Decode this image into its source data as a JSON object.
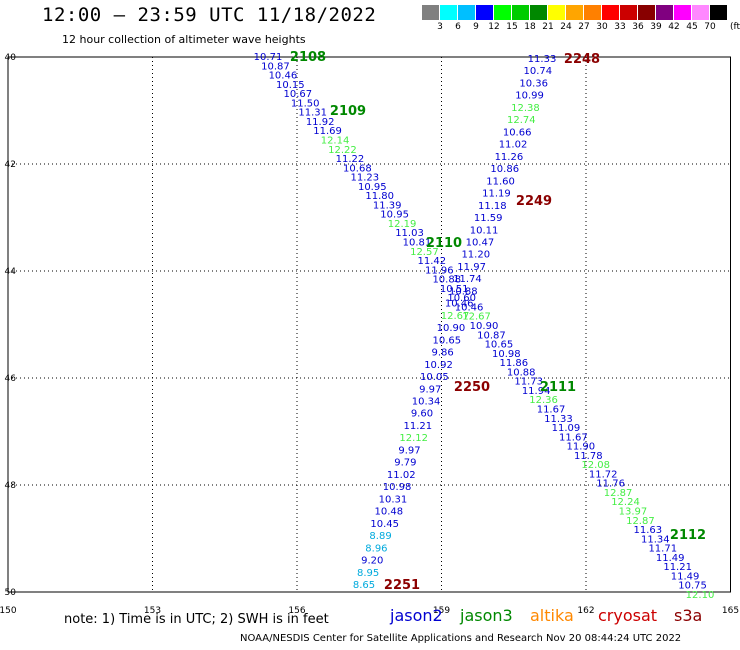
{
  "header": {
    "title": "12:00 — 23:59 UTC 11/18/2022",
    "subtitle": "12 hour collection of altimeter wave heights"
  },
  "legend": {
    "colors": [
      "#808080",
      "#00ffff",
      "#00bfff",
      "#0000ff",
      "#00ff00",
      "#00cc00",
      "#008800",
      "#ffff00",
      "#ffa500",
      "#ff8000",
      "#ff0000",
      "#cc0000",
      "#880000",
      "#800080",
      "#ff00ff",
      "#ff88ff",
      "#000000"
    ],
    "labels": [
      "3",
      "6",
      "9",
      "12",
      "15",
      "18",
      "21",
      "24",
      "27",
      "30",
      "33",
      "36",
      "39",
      "42",
      "45",
      "70"
    ],
    "unit": "(ft)"
  },
  "axes": {
    "x_ticks": [
      "150",
      "153",
      "156",
      "159",
      "162",
      "165"
    ],
    "y_ticks": [
      "40",
      "42",
      "44",
      "46",
      "48",
      "50"
    ]
  },
  "colors": {
    "jason2": "#0000d0",
    "jason3": "#008800",
    "altika": "#ff8800",
    "cryosat": "#cc0000",
    "s3a": "#8b0000",
    "light_green": "#44ee44",
    "cyan": "#00aadd"
  },
  "tracks": {
    "descending": [
      [
        "10.71",
        "j2"
      ],
      [
        "10.87",
        "j2"
      ],
      [
        "10.46",
        "j2"
      ],
      [
        "10.15",
        "j2"
      ],
      [
        "10.67",
        "j2"
      ],
      [
        "11.50",
        "j2"
      ],
      [
        "11.31",
        "j2"
      ],
      [
        "11.92",
        "j2"
      ],
      [
        "11.69",
        "j2"
      ],
      [
        "12.14",
        "lg"
      ],
      [
        "12.22",
        "lg"
      ],
      [
        "11.22",
        "j2"
      ],
      [
        "10.68",
        "j2"
      ],
      [
        "11.23",
        "j2"
      ],
      [
        "10.95",
        "j2"
      ],
      [
        "11.80",
        "j2"
      ],
      [
        "11.39",
        "j2"
      ],
      [
        "10.95",
        "j2"
      ],
      [
        "12.19",
        "lg"
      ],
      [
        "11.03",
        "j2"
      ],
      [
        "10.81",
        "j2"
      ],
      [
        "12.57",
        "lg"
      ],
      [
        "11.42",
        "j2"
      ],
      [
        "11.96",
        "j2"
      ],
      [
        "10.88",
        "j2"
      ],
      [
        "10.51",
        "j2"
      ],
      [
        "10.60",
        "j2"
      ],
      [
        "10.46",
        "j2"
      ],
      [
        "12.67",
        "lg"
      ],
      [
        "10.90",
        "j2"
      ],
      [
        "10.87",
        "j2"
      ],
      [
        "10.65",
        "j2"
      ],
      [
        "10.98",
        "j2"
      ],
      [
        "11.86",
        "j2"
      ],
      [
        "10.88",
        "j2"
      ],
      [
        "11.73",
        "j2"
      ],
      [
        "11.94",
        "j2"
      ],
      [
        "12.36",
        "lg"
      ],
      [
        "11.67",
        "j2"
      ],
      [
        "11.33",
        "j2"
      ],
      [
        "11.09",
        "j2"
      ],
      [
        "11.67",
        "j2"
      ],
      [
        "11.90",
        "j2"
      ],
      [
        "11.78",
        "j2"
      ],
      [
        "12.08",
        "lg"
      ],
      [
        "11.72",
        "j2"
      ],
      [
        "11.76",
        "j2"
      ],
      [
        "12.87",
        "lg"
      ],
      [
        "12.24",
        "lg"
      ],
      [
        "13.97",
        "lg"
      ],
      [
        "12.87",
        "lg"
      ],
      [
        "11.63",
        "j2"
      ],
      [
        "11.34",
        "j2"
      ],
      [
        "11.71",
        "j2"
      ],
      [
        "11.49",
        "j2"
      ],
      [
        "11.21",
        "j2"
      ],
      [
        "11.49",
        "j2"
      ],
      [
        "10.75",
        "j2"
      ],
      [
        "12.10",
        "lg"
      ]
    ],
    "ascending": [
      [
        "11.33",
        "j2"
      ],
      [
        "10.74",
        "j2"
      ],
      [
        "10.36",
        "j2"
      ],
      [
        "10.99",
        "j2"
      ],
      [
        "12.38",
        "lg"
      ],
      [
        "12.74",
        "lg"
      ],
      [
        "10.66",
        "j2"
      ],
      [
        "11.02",
        "j2"
      ],
      [
        "11.26",
        "j2"
      ],
      [
        "10.86",
        "j2"
      ],
      [
        "11.60",
        "j2"
      ],
      [
        "11.19",
        "j2"
      ],
      [
        "11.18",
        "j2"
      ],
      [
        "11.59",
        "j2"
      ],
      [
        "10.11",
        "j2"
      ],
      [
        "10.47",
        "j2"
      ],
      [
        "11.20",
        "j2"
      ],
      [
        "11.97",
        "j2"
      ],
      [
        "11.74",
        "j2"
      ],
      [
        "10.88",
        "j2"
      ],
      [
        "10.46",
        "j2"
      ],
      [
        "12.67",
        "lg"
      ],
      [
        "10.90",
        "j2"
      ],
      [
        "10.65",
        "j2"
      ],
      [
        "9.86",
        "j2"
      ],
      [
        "10.92",
        "j2"
      ],
      [
        "10.05",
        "j2"
      ],
      [
        "9.97",
        "j2"
      ],
      [
        "10.34",
        "j2"
      ],
      [
        "9.60",
        "j2"
      ],
      [
        "11.21",
        "j2"
      ],
      [
        "12.12",
        "lg"
      ],
      [
        "9.97",
        "j2"
      ],
      [
        "9.79",
        "j2"
      ],
      [
        "11.02",
        "j2"
      ],
      [
        "10.98",
        "j2"
      ],
      [
        "10.31",
        "j2"
      ],
      [
        "10.48",
        "j2"
      ],
      [
        "10.45",
        "j2"
      ],
      [
        "8.89",
        "cy"
      ],
      [
        "8.96",
        "cy"
      ],
      [
        "9.20",
        "j2"
      ],
      [
        "8.95",
        "cy"
      ],
      [
        "8.65",
        "cy"
      ]
    ],
    "pass_labels": [
      "2108",
      "2109",
      "2110",
      "2111",
      "2112",
      "2248",
      "2249",
      "2250",
      "2251"
    ]
  },
  "footer": {
    "note": "note: 1) Time is in UTC; 2) SWH is in feet",
    "satellites": [
      "jason2",
      "jason3",
      "altika",
      "cryosat",
      "s3a"
    ],
    "credit": "NOAA/NESDIS Center for Satellite Applications and Research   Nov 20 08:44:24 UTC 2022"
  }
}
